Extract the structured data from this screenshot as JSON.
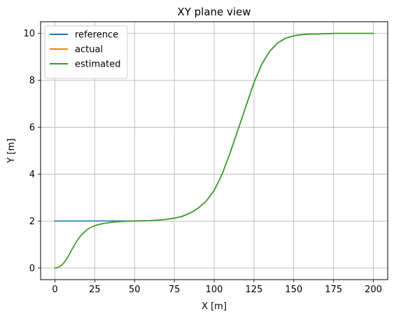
{
  "chart_data": {
    "type": "line",
    "title": "XY plane view",
    "xlabel": "X [m]",
    "ylabel": "Y [m]",
    "xlim": [
      -9,
      209
    ],
    "ylim": [
      -0.5,
      10.5
    ],
    "xticks": [
      0,
      25,
      50,
      75,
      100,
      125,
      150,
      175,
      200
    ],
    "yticks": [
      0,
      2,
      4,
      6,
      8,
      10
    ],
    "grid": true,
    "legend_position": "top-left",
    "series": [
      {
        "name": "reference",
        "color": "#1f77b4",
        "x": [
          0,
          10,
          20,
          30,
          40,
          50,
          55,
          60,
          65,
          70,
          75,
          80,
          85,
          90,
          95,
          100,
          105,
          110,
          115,
          120,
          125,
          130,
          135,
          140,
          145,
          150,
          155,
          160,
          165,
          170,
          175,
          180,
          185,
          190,
          195,
          200
        ],
        "y": [
          2.0,
          2.0,
          2.0,
          2.0,
          2.0,
          2.0,
          2.01,
          2.02,
          2.04,
          2.07,
          2.12,
          2.2,
          2.34,
          2.55,
          2.85,
          3.3,
          4.0,
          4.9,
          5.9,
          6.9,
          7.9,
          8.7,
          9.25,
          9.6,
          9.8,
          9.9,
          9.95,
          9.97,
          9.98,
          9.99,
          10.0,
          10.0,
          10.0,
          10.0,
          10.0,
          10.0
        ]
      },
      {
        "name": "actual",
        "color": "#ff7f0e",
        "x": [
          0,
          2,
          4,
          6,
          8,
          10,
          12,
          14,
          16,
          18,
          20,
          22,
          25,
          28,
          30,
          35,
          40,
          45,
          50,
          55,
          60,
          65,
          70,
          75,
          80,
          85,
          90,
          95,
          100,
          105,
          110,
          115,
          120,
          125,
          130,
          135,
          140,
          145,
          150,
          155,
          160,
          165,
          170,
          175,
          180,
          185,
          190,
          195,
          200
        ],
        "y": [
          0.0,
          0.02,
          0.1,
          0.25,
          0.45,
          0.7,
          0.95,
          1.17,
          1.36,
          1.5,
          1.62,
          1.71,
          1.8,
          1.86,
          1.89,
          1.94,
          1.97,
          1.99,
          2.0,
          2.01,
          2.02,
          2.04,
          2.07,
          2.12,
          2.2,
          2.34,
          2.55,
          2.85,
          3.3,
          4.0,
          4.9,
          5.9,
          6.9,
          7.9,
          8.7,
          9.25,
          9.6,
          9.8,
          9.9,
          9.95,
          9.97,
          9.98,
          9.99,
          10.0,
          10.0,
          10.0,
          10.0,
          10.0,
          10.0
        ]
      },
      {
        "name": "estimated",
        "color": "#2ca02c",
        "x": [
          0,
          2,
          4,
          6,
          8,
          10,
          12,
          14,
          16,
          18,
          20,
          22,
          25,
          28,
          30,
          35,
          40,
          45,
          50,
          55,
          60,
          65,
          70,
          75,
          80,
          85,
          90,
          95,
          100,
          105,
          110,
          115,
          120,
          125,
          130,
          135,
          140,
          145,
          150,
          155,
          160,
          165,
          170,
          175,
          180,
          185,
          190,
          195,
          200
        ],
        "y": [
          0.0,
          0.02,
          0.1,
          0.25,
          0.45,
          0.7,
          0.95,
          1.17,
          1.36,
          1.5,
          1.62,
          1.71,
          1.8,
          1.86,
          1.89,
          1.94,
          1.97,
          1.99,
          2.0,
          2.01,
          2.02,
          2.04,
          2.07,
          2.12,
          2.2,
          2.34,
          2.55,
          2.85,
          3.3,
          4.0,
          4.9,
          5.9,
          6.9,
          7.9,
          8.7,
          9.25,
          9.6,
          9.8,
          9.9,
          9.95,
          9.97,
          9.98,
          9.99,
          10.0,
          10.0,
          10.0,
          10.0,
          10.0,
          10.0
        ]
      }
    ]
  }
}
